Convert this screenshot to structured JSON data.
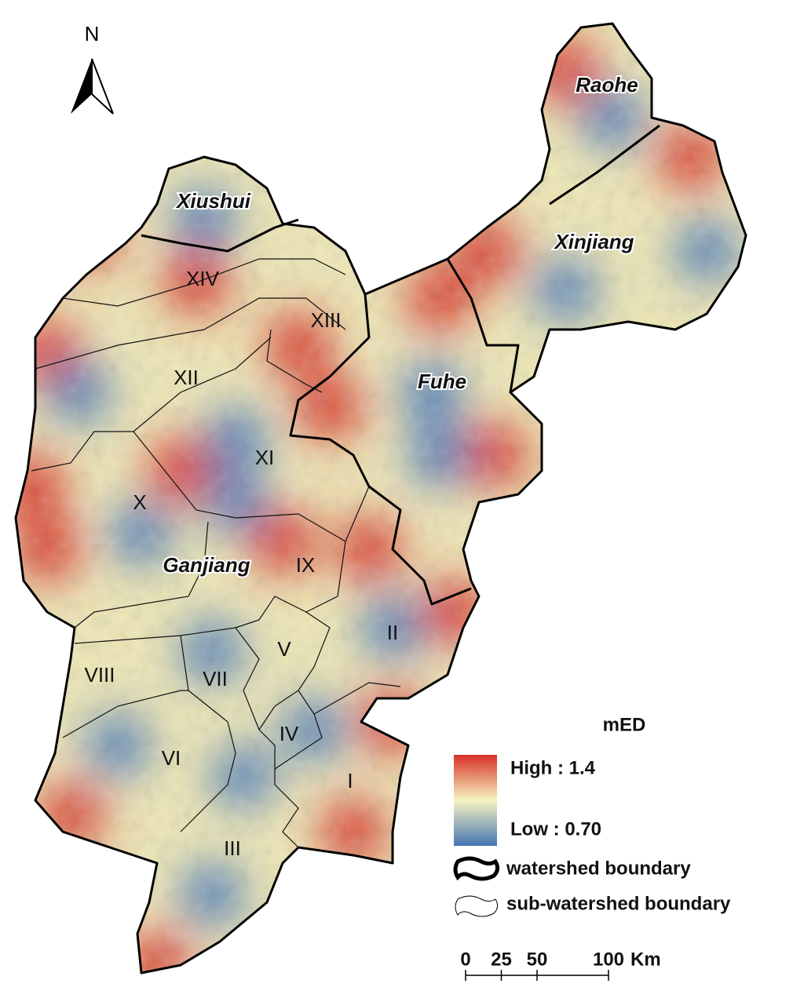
{
  "north": "N",
  "basins": [
    "Raohe",
    "Xiushui",
    "Xinjiang",
    "Fuhe",
    "Ganjiang"
  ],
  "sub_watersheds": [
    "XIV",
    "XIII",
    "XII",
    "XI",
    "X",
    "IX",
    "II",
    "V",
    "VIII",
    "VII",
    "IV",
    "VI",
    "I",
    "III"
  ],
  "legend": {
    "title": "mED",
    "high": "High : 1.4",
    "low": "Low : 0.70",
    "items": [
      "watershed boundary",
      "sub-watershed boundary"
    ]
  },
  "scale": {
    "ticks": [
      0,
      25,
      50,
      100
    ],
    "unit": "Km"
  }
}
